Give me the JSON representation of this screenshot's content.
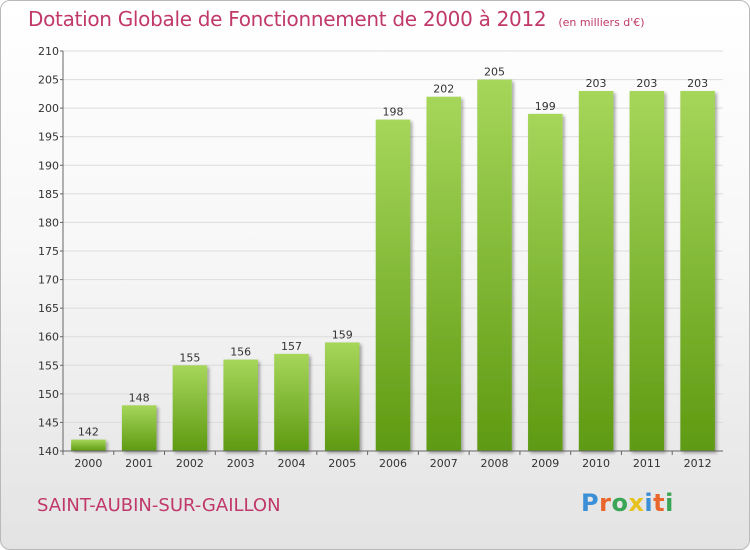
{
  "title": "Dotation Globale de Fonctionnement de 2000 à 2012",
  "subtitle": "(en milliers d'€)",
  "commune": "SAINT-AUBIN-SUR-GAILLON",
  "logo": {
    "letters": [
      "P",
      "r",
      "o",
      "x",
      "i",
      "t",
      "i"
    ],
    "colors": [
      "#3b8fd6",
      "#e9662c",
      "#3aa655",
      "#e8c21e",
      "#3b8fd6",
      "#e9662c",
      "#3aa655"
    ]
  },
  "colors": {
    "bar_top": "#a6d65a",
    "bar_bottom": "#5e9a12",
    "grid": "#dcdcdc",
    "title": "#c0396a"
  },
  "chart_data": {
    "type": "bar",
    "categories": [
      "2000",
      "2001",
      "2002",
      "2003",
      "2004",
      "2005",
      "2006",
      "2007",
      "2008",
      "2009",
      "2010",
      "2011",
      "2012"
    ],
    "values": [
      142,
      148,
      155,
      156,
      157,
      159,
      198,
      202,
      205,
      199,
      203,
      203,
      203
    ],
    "ylim": [
      140,
      210
    ],
    "yticks": [
      140,
      145,
      150,
      155,
      160,
      165,
      170,
      175,
      180,
      185,
      190,
      195,
      200,
      205,
      210
    ],
    "grid": true,
    "data_labels": true
  }
}
